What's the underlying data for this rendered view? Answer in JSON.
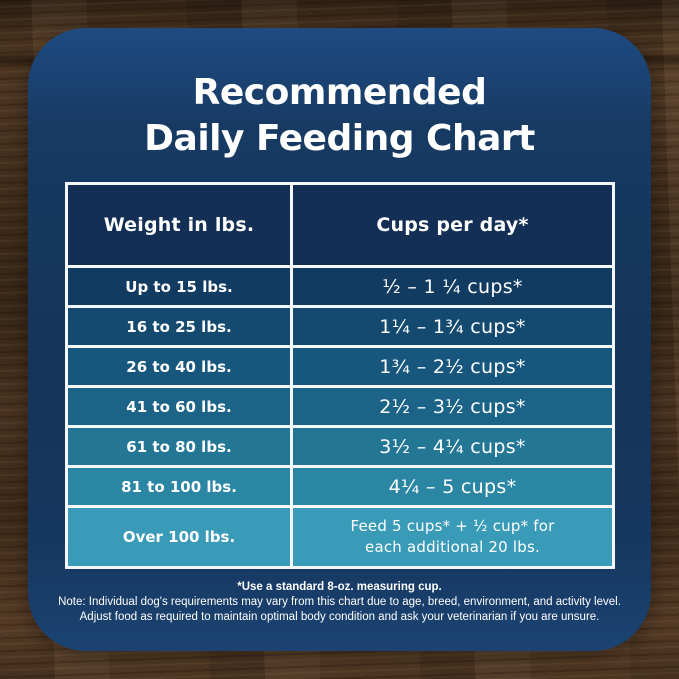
{
  "title": {
    "line1": "Recommended",
    "line2": "Daily Feeding Chart"
  },
  "table": {
    "header": {
      "weight": "Weight in lbs.",
      "cups": "Cups per day*"
    },
    "header_color": "#142F55",
    "rows": [
      {
        "weight": "Up to 15 lbs.",
        "cups": "½ – 1 ¼ cups*",
        "color": "#123B61"
      },
      {
        "weight": "16 to 25 lbs.",
        "cups": "1¼ – 1¾  cups*",
        "color": "#154A70"
      },
      {
        "weight": "26 to 40 lbs.",
        "cups": "1¾ – 2½ cups*",
        "color": "#18577D"
      },
      {
        "weight": "41 to 60 lbs.",
        "cups": "2½ – 3½ cups*",
        "color": "#1C6388"
      },
      {
        "weight": "61 to 80 lbs.",
        "cups": "3½ – 4¼ cups*",
        "color": "#237795"
      },
      {
        "weight": "81 to 100 lbs.",
        "cups": "4¼ – 5 cups*",
        "color": "#2B86A4"
      }
    ],
    "last_row": {
      "weight": "Over 100 lbs.",
      "cups_line1": "Feed 5 cups* + ½ cup* for",
      "cups_line2": "each additional 20 lbs.",
      "color": "#3A9BB8"
    }
  },
  "notes": {
    "measuring_cup": "*Use a standard 8-oz. measuring cup.",
    "line1": "Note: Individual dog's requirements may vary from this chart due to age, breed, environment, and activity level.",
    "line2": "Adjust food as required to maintain optimal body condition and ask your veterinarian if you are unsure."
  },
  "colors": {
    "card_top": "#1E4B82",
    "card_body": "#153459",
    "wood_base": "#4A3322",
    "text": "#FFFFFF",
    "table_border": "#F4F8FB"
  }
}
